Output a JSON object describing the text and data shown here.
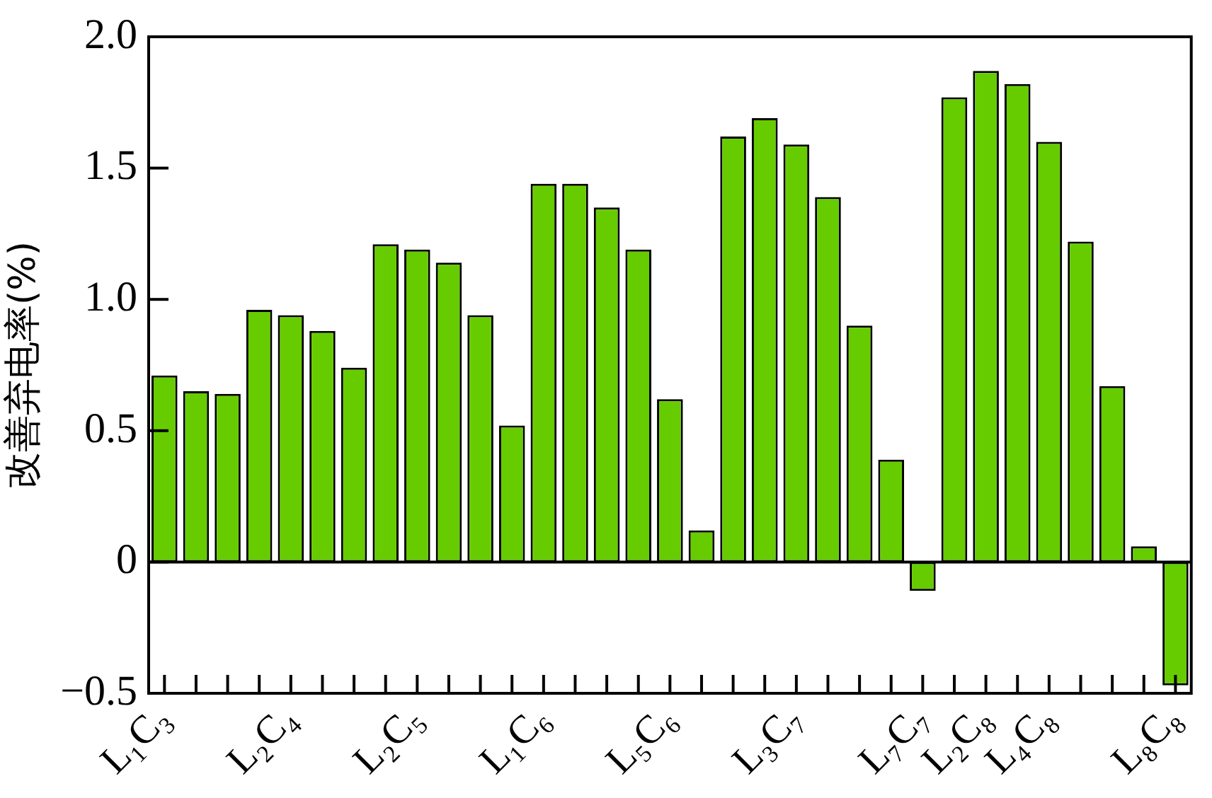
{
  "chart_data": {
    "type": "bar",
    "ylabel": "改善弃电率(%)",
    "categories": [
      "L₁C₃",
      null,
      null,
      null,
      "L₂C₄",
      null,
      null,
      null,
      "L₂C₅",
      null,
      null,
      null,
      "L₁C₆",
      null,
      null,
      null,
      "L₅C₆",
      null,
      null,
      null,
      "L₃C₇",
      null,
      null,
      null,
      "L₇C₇",
      null,
      "L₂C₈",
      null,
      "L₄C₈",
      null,
      null,
      null,
      "L₈C₈"
    ],
    "values": [
      0.71,
      0.65,
      0.64,
      0.96,
      0.94,
      0.88,
      0.74,
      1.21,
      1.19,
      1.14,
      0.94,
      0.52,
      1.44,
      1.44,
      1.35,
      1.19,
      0.62,
      0.12,
      1.62,
      1.69,
      1.59,
      1.39,
      0.9,
      0.39,
      -0.11,
      1.77,
      1.87,
      1.82,
      1.6,
      1.22,
      0.67,
      0.06,
      -0.47
    ],
    "color": "#66cc00",
    "ylim": [
      -0.5,
      2
    ],
    "yticks": [
      {
        "value": -0.5,
        "label": "−0.5"
      },
      0,
      0.5,
      {
        "value": 1,
        "label": "1.0"
      },
      1.5,
      {
        "value": 2,
        "label": "2.0"
      }
    ],
    "ref_lines": [
      {
        "axis": "y",
        "value": 0,
        "color": "#000000"
      }
    ]
  }
}
